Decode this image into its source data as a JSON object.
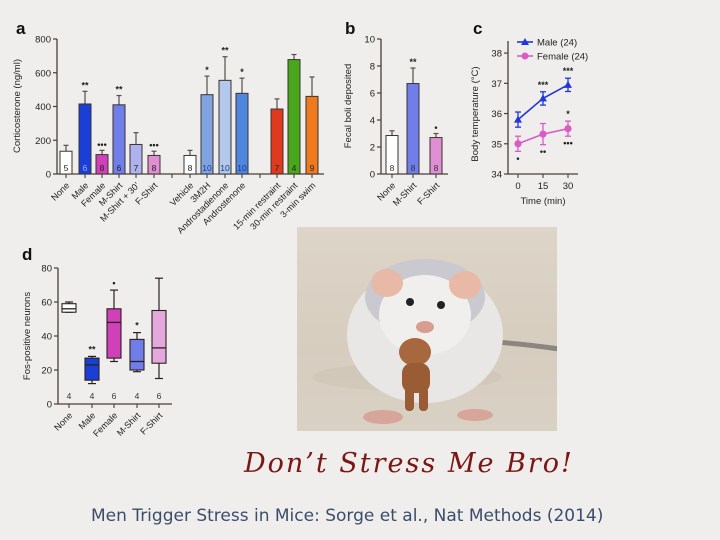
{
  "slide": {
    "slogan": "Don’t Stress Me Bro!",
    "caption": "Men Trigger Stress in Mice: Sorge et al., Nat Methods (2014)",
    "photo": {
      "subject": "mouse-holding-teddy-bear"
    }
  },
  "chart_data": [
    {
      "panel": "a",
      "type": "bar",
      "title": "",
      "ylabel": "Corticosterone (ng/ml)",
      "xlabel": "",
      "ylim": [
        0,
        800
      ],
      "yticks": [
        "0",
        "200",
        "400",
        "600",
        "800"
      ],
      "grid": false,
      "categories": [
        "None",
        "Male",
        "Female",
        "M-Shirt",
        "M-Shirt + 30’",
        "F-Shirt",
        "Vehicle",
        "3M2H",
        "Androstadienone",
        "Androstenone",
        "15-min restraint",
        "30-min restraint",
        "3-min swim"
      ],
      "values": [
        135,
        415,
        115,
        410,
        175,
        110,
        110,
        470,
        555,
        478,
        385,
        678,
        460
      ],
      "errors": [
        35,
        75,
        25,
        55,
        70,
        25,
        30,
        110,
        140,
        90,
        60,
        30,
        115
      ],
      "n": [
        "5",
        "6",
        "8",
        "6",
        "7",
        "8",
        "8",
        "10",
        "10",
        "10",
        "7",
        "4",
        "9"
      ],
      "significance": [
        "",
        "**",
        "•••",
        "**",
        "",
        "•••",
        "",
        "*",
        "**",
        "*",
        "",
        "",
        ""
      ],
      "colors": [
        "#ffffff",
        "#1a3fd6",
        "#d040b8",
        "#6f7ee8",
        "#aeb2ee",
        "#e08fd2",
        "#ffffff",
        "#7fa4e0",
        "#b3c8ea",
        "#4f86e0",
        "#e03a1e",
        "#4aa61c",
        "#f07a1e"
      ],
      "n_colors": [
        "#222",
        "#9fb4ff",
        "#222",
        "#222",
        "#222",
        "#222",
        "#222",
        "#1a3a8a",
        "#1a3a8a",
        "#1a3a8a",
        "#222",
        "#222",
        "#222"
      ]
    },
    {
      "panel": "b",
      "type": "bar",
      "title": "",
      "ylabel": "Fecal boli deposited",
      "xlabel": "",
      "ylim": [
        0,
        10
      ],
      "yticks": [
        "0",
        "2",
        "4",
        "6",
        "8",
        "10"
      ],
      "grid": false,
      "categories": [
        "None",
        "M-Shirt",
        "F-Shirt"
      ],
      "values": [
        2.85,
        6.7,
        2.7
      ],
      "errors": [
        0.35,
        1.15,
        0.3
      ],
      "n": [
        "8",
        "8",
        "8"
      ],
      "significance": [
        "",
        "**",
        "•"
      ],
      "colors": [
        "#ffffff",
        "#6f7ee8",
        "#e08fd2"
      ]
    },
    {
      "panel": "c",
      "type": "line",
      "title": "",
      "ylabel": "Body temperature (°C)",
      "xlabel": "Time (min)",
      "x": [
        0,
        15,
        30
      ],
      "xticks": [
        "0",
        "15",
        "30"
      ],
      "ylim": [
        34,
        38.4
      ],
      "yticks": [
        "34",
        "35",
        "36",
        "37",
        "38"
      ],
      "grid": false,
      "legend_position": "top-left",
      "series": [
        {
          "name": "Male (24)",
          "values": [
            35.8,
            36.5,
            36.95
          ],
          "errors": [
            0.25,
            0.22,
            0.22
          ],
          "color": "#2336d6",
          "marker": "triangle",
          "significance_above": [
            "",
            "***",
            "***"
          ]
        },
        {
          "name": "Female (24)",
          "values": [
            35.0,
            35.32,
            35.5
          ],
          "errors": [
            0.25,
            0.35,
            0.25
          ],
          "color": "#d85cc4",
          "marker": "circle",
          "significance_above": [
            "",
            "",
            "*"
          ],
          "significance_below": [
            "•",
            "••",
            "•••"
          ]
        }
      ]
    },
    {
      "panel": "d",
      "type": "box",
      "title": "",
      "ylabel": "Fos-positive neurons",
      "xlabel": "",
      "ylim": [
        0,
        80
      ],
      "yticks": [
        "0",
        "20",
        "40",
        "60",
        "80"
      ],
      "grid": false,
      "categories": [
        "None",
        "Male",
        "Female",
        "M-Shirt",
        "F-Shirt"
      ],
      "boxes": [
        {
          "min": 54,
          "q1": 54,
          "median": 56,
          "q3": 59,
          "max": 60
        },
        {
          "min": 12,
          "q1": 14,
          "median": 23,
          "q3": 27,
          "max": 28
        },
        {
          "min": 25,
          "q1": 27,
          "median": 48,
          "q3": 56,
          "max": 67
        },
        {
          "min": 19,
          "q1": 20,
          "median": 25,
          "q3": 38,
          "max": 42
        },
        {
          "min": 15,
          "q1": 24,
          "median": 33,
          "q3": 55,
          "max": 74
        }
      ],
      "n": [
        "4",
        "4",
        "6",
        "4",
        "6"
      ],
      "significance": [
        "",
        "**",
        "•",
        "*",
        ""
      ],
      "colors": [
        "#ffffff",
        "#1a3fd6",
        "#d040b8",
        "#6f7ee8",
        "#e4a8dc"
      ]
    }
  ]
}
